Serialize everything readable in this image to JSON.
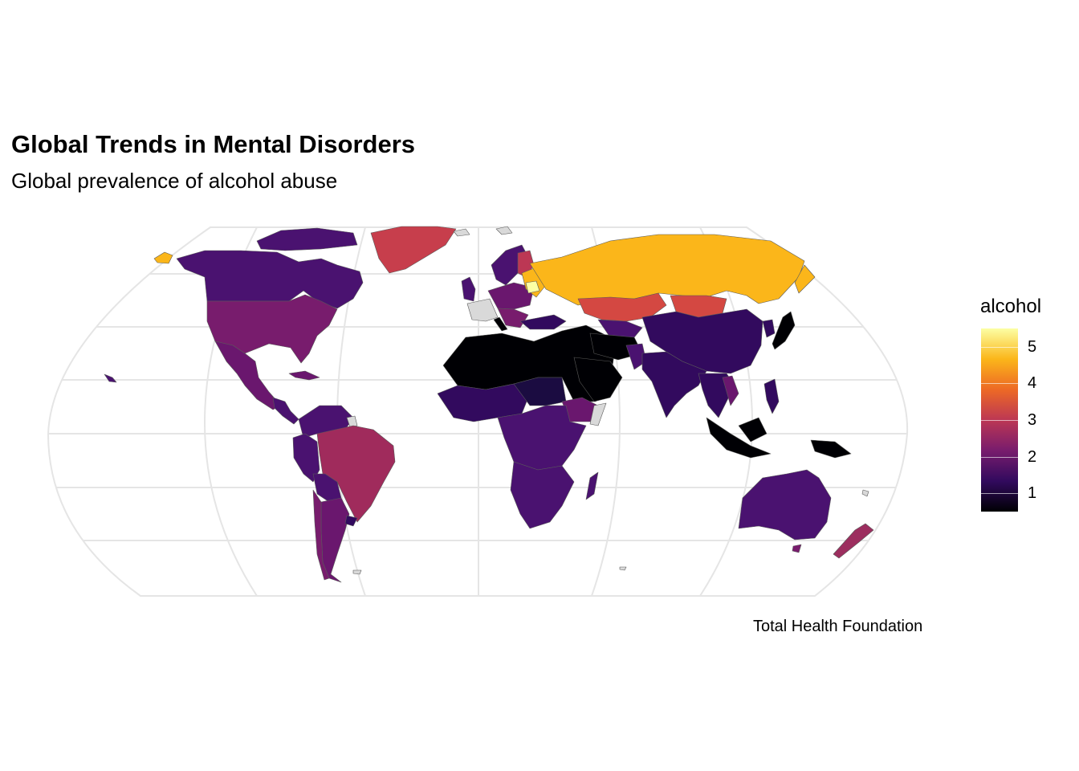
{
  "title": "Global Trends in Mental Disorders",
  "subtitle": "Global prevalence of alcohol abuse",
  "caption": "Total Health Foundation",
  "legend": {
    "title": "alcohol",
    "min": 0.5,
    "max": 5.5,
    "ticks": [
      {
        "value": 5,
        "label": "5"
      },
      {
        "value": 4,
        "label": "4"
      },
      {
        "value": 3,
        "label": "3"
      },
      {
        "value": 2,
        "label": "2"
      },
      {
        "value": 1,
        "label": "1"
      }
    ],
    "colors": [
      "#000004",
      "#320a5e",
      "#781c6d",
      "#bc3754",
      "#ed6925",
      "#fbb61a",
      "#fcffa4"
    ]
  },
  "colors": {
    "missing": "#d9d9d9",
    "grid": "#e5e5e5",
    "border": "#5a5a5a"
  }
}
